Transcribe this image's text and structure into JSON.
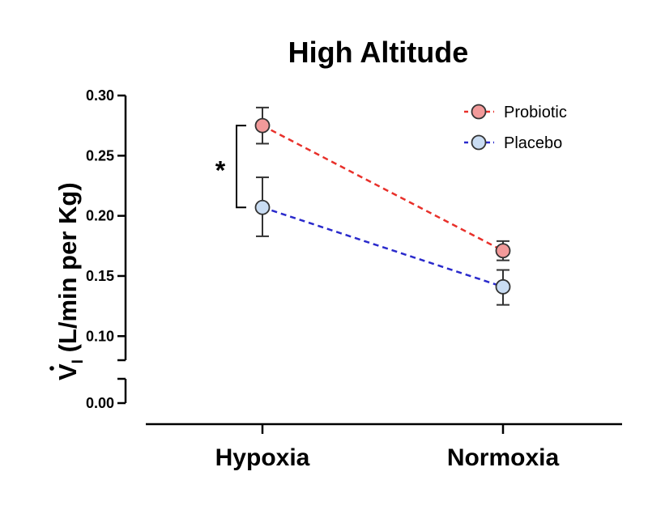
{
  "chart_data": {
    "type": "line",
    "title": "High Altitude",
    "ylabel_main": "V",
    "ylabel_sub": "I",
    "ylabel_units": " (L/min per Kg)",
    "categories": [
      "Hypoxia",
      "Normoxia"
    ],
    "y_ticks_upper": [
      "0.30",
      "0.25",
      "0.20",
      "0.15",
      "0.10"
    ],
    "y_tick_lower": "0.00",
    "ylim_upper": [
      0.08,
      0.3
    ],
    "ylim_lower": [
      0.0,
      0.005
    ],
    "axis_break": true,
    "series": [
      {
        "name": "Probiotic",
        "values": [
          0.275,
          0.171
        ],
        "error": [
          [
            0.26,
            0.29
          ],
          [
            0.163,
            0.179
          ]
        ],
        "color": "#f29a9a",
        "line_color": "#e8302a",
        "line_style": "dashed"
      },
      {
        "name": "Placebo",
        "values": [
          0.207,
          0.141
        ],
        "error": [
          [
            0.183,
            0.232
          ],
          [
            0.126,
            0.155
          ]
        ],
        "color": "#c9dcf2",
        "line_color": "#2a2acc",
        "line_style": "dashed"
      }
    ],
    "significance": "*",
    "legend_position": "top-right",
    "grid": false
  }
}
